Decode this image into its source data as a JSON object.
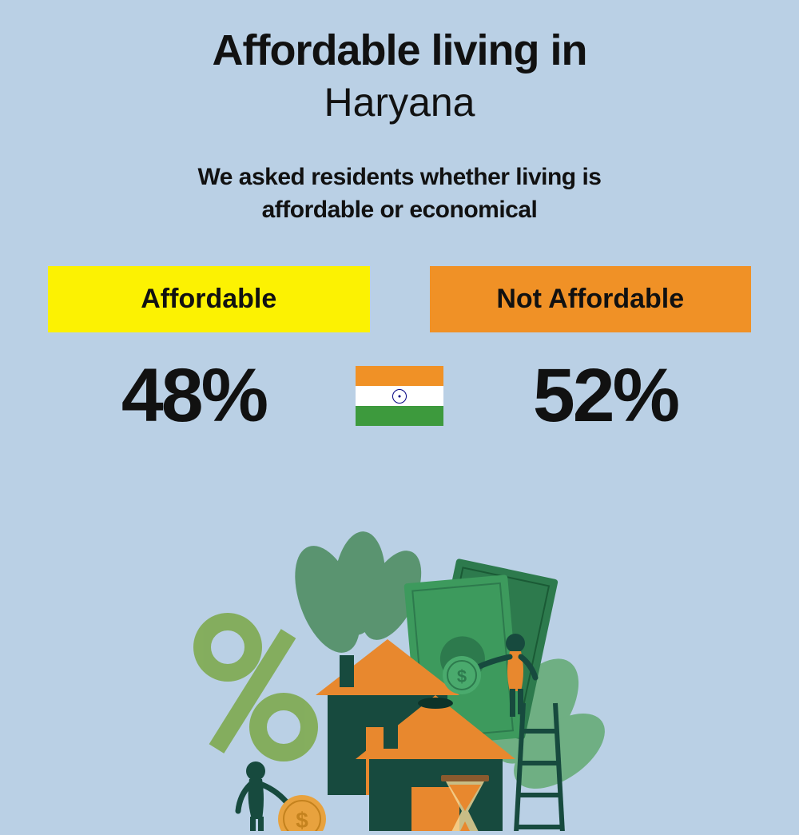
{
  "title": {
    "main": "Affordable living in",
    "sub": "Haryana"
  },
  "description": "We asked residents whether living is\naffordable or economical",
  "labels": {
    "affordable": "Affordable",
    "not_affordable": "Not Affordable"
  },
  "percentages": {
    "affordable": "48%",
    "not_affordable": "52%"
  },
  "colors": {
    "background": "#bad0e5",
    "affordable_bg": "#fcf202",
    "not_affordable_bg": "#f09126",
    "text": "#111111",
    "flag_saffron": "#f09126",
    "flag_white": "#ffffff",
    "flag_green": "#3d9a3d",
    "flag_chakra": "#000080",
    "house_orange": "#e8882e",
    "house_dark": "#174a3e",
    "money_green": "#2d7a4d",
    "percent_green": "#7ba847",
    "leaf_green": "#4a8a5c"
  },
  "typography": {
    "title_main_size": 54,
    "title_sub_size": 50,
    "description_size": 30,
    "label_size": 34,
    "percentage_size": 95
  }
}
